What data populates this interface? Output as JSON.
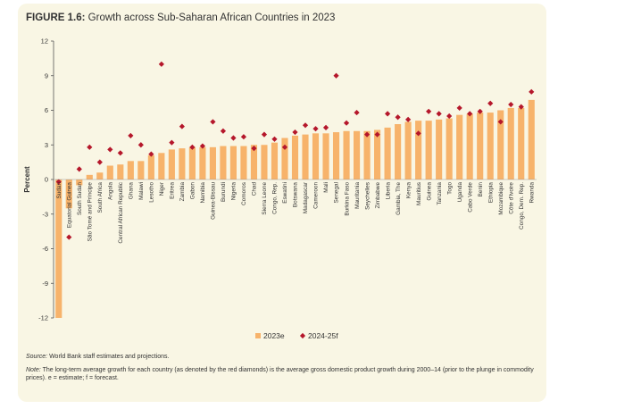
{
  "figure": {
    "label": "FIGURE 1.6:",
    "title": "Growth across Sub-Saharan African Countries in 2023",
    "source_label": "Source:",
    "source_text": "World Bank staff estimates and projections.",
    "note_label": "Note:",
    "note_text": "The long-term average growth for each country (as denoted by the red diamonds) is the average gross domestic product growth during 2000–14 (prior to the plunge in commodity prices). e = estimate; f = forecast."
  },
  "colors": {
    "bar": "#f7b36b",
    "diamond": "#b5172b",
    "axis": "#555555",
    "panel": "#f9f6e4"
  },
  "chart_data": {
    "type": "bar",
    "ylabel": "Percent",
    "ylim": [
      -12,
      12
    ],
    "yticks": [
      12,
      9,
      6,
      3,
      0,
      -3,
      -6,
      -9,
      -12
    ],
    "grid": false,
    "legend_position": "bottom-center",
    "categories": [
      "Sudan",
      "Equatorial Guinea",
      "South Sudan",
      "São Tomé and Príncipe",
      "South Africa",
      "Angola",
      "Central African Republic",
      "Ghana",
      "Malawi",
      "Lesotho",
      "Niger",
      "Eritrea",
      "Zambia",
      "Gabon",
      "Namibia",
      "Guinea-Bissau",
      "Burundi",
      "Nigeria",
      "Comoros",
      "Chad",
      "Sierra Leone",
      "Congo, Rep.",
      "Eswatini",
      "Botswana",
      "Madagascar",
      "Cameroon",
      "Mali",
      "Senegal",
      "Burkina Faso",
      "Mauritania",
      "Seychelles",
      "Zimbabwe",
      "Liberia",
      "Gambia, The",
      "Kenya",
      "Mauritius",
      "Guinea",
      "Tanzania",
      "Togo",
      "Uganda",
      "Cabo Verde",
      "Benin",
      "Ethiopia",
      "Mozambique",
      "Côte d'Ivoire",
      "Congo, Dem. Rep.",
      "Rwanda"
    ],
    "series": [
      {
        "name": "2023e",
        "type": "bar",
        "values": [
          -12.0,
          -2.5,
          -0.5,
          0.4,
          0.6,
          1.2,
          1.3,
          1.6,
          1.6,
          2.1,
          2.3,
          2.6,
          2.7,
          2.8,
          2.8,
          2.8,
          2.9,
          2.9,
          2.9,
          3.0,
          3.0,
          3.2,
          3.6,
          3.8,
          3.9,
          4.0,
          4.0,
          4.1,
          4.2,
          4.2,
          4.2,
          4.3,
          4.5,
          4.8,
          5.0,
          5.1,
          5.1,
          5.2,
          5.3,
          5.6,
          5.7,
          5.8,
          5.8,
          6.0,
          6.2,
          6.2,
          6.9
        ]
      },
      {
        "name": "2024-25f",
        "type": "scatter",
        "values": [
          -0.2,
          -5.0,
          0.9,
          2.8,
          1.5,
          2.6,
          2.3,
          3.8,
          3.0,
          2.2,
          10.0,
          3.2,
          4.6,
          2.8,
          2.9,
          5.0,
          4.2,
          3.6,
          3.7,
          2.7,
          3.9,
          3.5,
          2.8,
          4.1,
          4.7,
          4.4,
          4.5,
          9.0,
          4.9,
          5.8,
          3.9,
          3.9,
          5.7,
          5.4,
          5.2,
          4.0,
          5.9,
          5.7,
          5.5,
          6.2,
          5.7,
          5.9,
          6.6,
          5.0,
          6.5,
          6.3,
          7.6
        ]
      }
    ]
  }
}
